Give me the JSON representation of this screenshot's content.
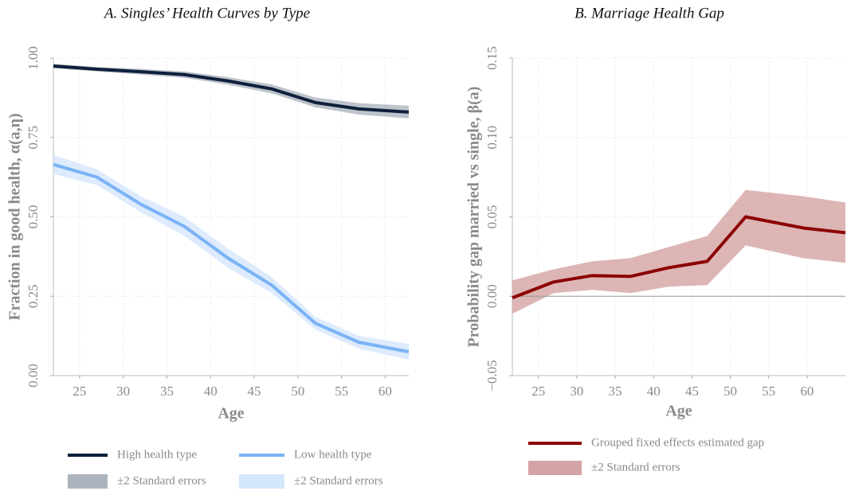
{
  "chart_data": [
    {
      "type": "line",
      "title": "A. Singles’ Health Curves by Type",
      "xlabel": "Age",
      "ylabel": "Fraction in good health, α(a,η)",
      "x": [
        22,
        27,
        32,
        37,
        42,
        47,
        52,
        57,
        62.7
      ],
      "xlim": [
        22,
        62.7
      ],
      "xticks": [
        25,
        30,
        35,
        40,
        45,
        50,
        55,
        60
      ],
      "ylim": [
        0,
        1
      ],
      "yticks": [
        {
          "value": 0,
          "label": "0.00"
        },
        {
          "value": 0.25,
          "label": "0.25"
        },
        {
          "value": 0.5,
          "label": "0.50"
        },
        {
          "value": 0.75,
          "label": "0.75"
        },
        {
          "value": 1,
          "label": "1.00"
        }
      ],
      "grid": true,
      "series": [
        {
          "name": "High health type",
          "color": "#0d1f3c",
          "values": [
            0.975,
            0.965,
            0.957,
            0.948,
            0.928,
            0.903,
            0.86,
            0.84,
            0.83
          ],
          "band": {
            "name": "±2 Standard errors",
            "color": "#aeb4be",
            "lower": [
              0.968,
              0.958,
              0.948,
              0.938,
              0.916,
              0.889,
              0.845,
              0.822,
              0.81
            ],
            "upper": [
              0.982,
              0.972,
              0.966,
              0.958,
              0.94,
              0.917,
              0.876,
              0.858,
              0.85
            ]
          }
        },
        {
          "name": "Low health type",
          "color": "#7ab3f5",
          "values": [
            0.665,
            0.625,
            0.54,
            0.47,
            0.37,
            0.285,
            0.165,
            0.105,
            0.075
          ],
          "band": {
            "name": "±2 Standard errors",
            "color": "#d4e6fc",
            "lower": [
              0.635,
              0.6,
              0.515,
              0.44,
              0.34,
              0.26,
              0.145,
              0.085,
              0.05
            ],
            "upper": [
              0.695,
              0.65,
              0.565,
              0.5,
              0.4,
              0.31,
              0.185,
              0.125,
              0.1
            ]
          }
        }
      ]
    },
    {
      "type": "line",
      "title": "B. Marriage Health Gap",
      "xlabel": "Age",
      "ylabel": "Probability gap married vs single, β(a)",
      "x": [
        21.6,
        27,
        32,
        37,
        42,
        47,
        52,
        59.5,
        65
      ],
      "xlim": [
        21.6,
        65
      ],
      "xticks": [
        25,
        30,
        35,
        40,
        45,
        50,
        55,
        60
      ],
      "ylim": [
        -0.05,
        0.15
      ],
      "yticks": [
        {
          "value": -0.05,
          "label": "−0.05"
        },
        {
          "value": 0,
          "label": "0.00"
        },
        {
          "value": 0.05,
          "label": "0.05"
        },
        {
          "value": 0.1,
          "label": "0.10"
        },
        {
          "value": 0.15,
          "label": "0.15"
        }
      ],
      "grid": true,
      "hline": 0,
      "series": [
        {
          "name": "Grouped fixed effects estimated gap",
          "color": "#8b0000",
          "values": [
            -0.001,
            0.009,
            0.013,
            0.0125,
            0.018,
            0.022,
            0.05,
            0.043,
            0.04
          ],
          "band": {
            "name": "±2 Standard errors",
            "color": "#d4a3a3",
            "lower": [
              -0.011,
              0.002,
              0.004,
              0.002,
              0.006,
              0.007,
              0.032,
              0.024,
              0.021
            ],
            "upper": [
              0.01,
              0.017,
              0.022,
              0.024,
              0.031,
              0.038,
              0.067,
              0.063,
              0.059
            ]
          }
        }
      ]
    }
  ]
}
